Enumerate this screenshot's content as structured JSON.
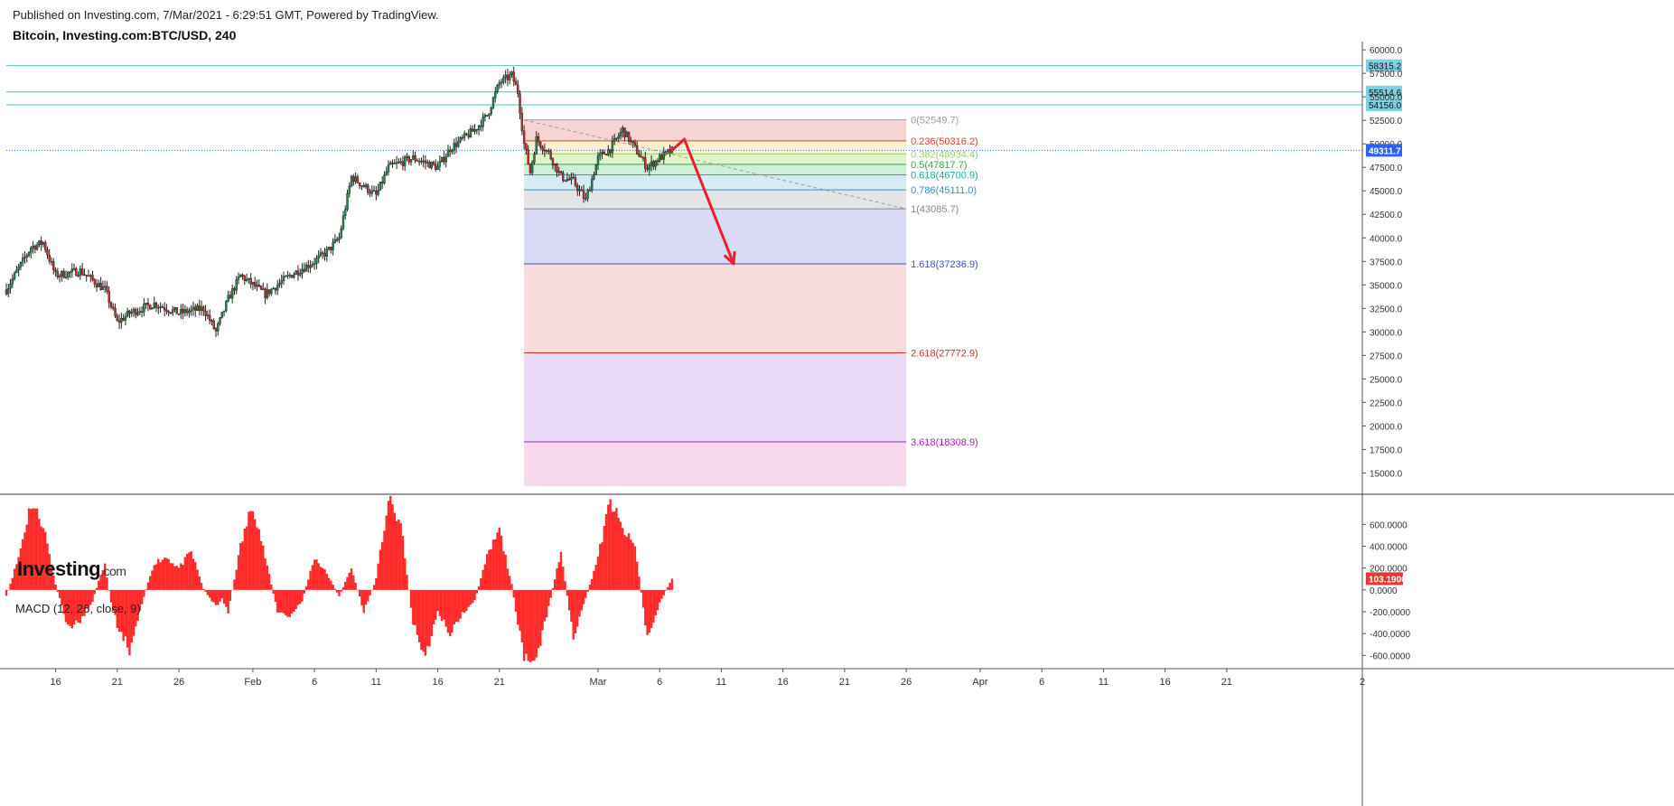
{
  "header": {
    "published": "Published on Investing.com, 7/Mar/2021 - 6:29:51 GMT, Powered by TradingView.",
    "title": "Bitcoin, Investing.com:BTC/USD, 240"
  },
  "logo": {
    "main": "Investing",
    "suffix": ".com"
  },
  "macd_label": "MACD (12, 26, close, 9)",
  "colors": {
    "up": "#26a69a",
    "down": "#ef5350",
    "candle_body_up": "#1b8a4a",
    "candle_body_down": "#c62828",
    "wick": "#222222",
    "hline": "#4fc3d6",
    "current_price": "#2962ff",
    "macd_hist": "#ff2a2a",
    "arrow": "#e8202a"
  },
  "chart_data": [
    {
      "type": "candlestick",
      "title": "Bitcoin, Investing.com:BTC/USD, 240",
      "x_ticks": [
        "16",
        "21",
        "26",
        "Feb",
        "6",
        "11",
        "16",
        "21",
        "Mar",
        "6",
        "11",
        "16",
        "21",
        "26",
        "Apr",
        "6",
        "11",
        "16",
        "21",
        "2"
      ],
      "x_tick_dates": [
        "2021-01-16",
        "2021-01-21",
        "2021-01-26",
        "2021-02-01",
        "2021-02-06",
        "2021-02-11",
        "2021-02-16",
        "2021-02-21",
        "2021-03-01",
        "2021-03-06",
        "2021-03-11",
        "2021-03-16",
        "2021-03-21",
        "2021-03-26",
        "2021-04-01",
        "2021-04-06",
        "2021-04-11",
        "2021-04-16",
        "2021-04-21",
        "2021-05-02"
      ],
      "x_range": [
        "2021-01-12",
        "2021-05-02"
      ],
      "y_ticks": [
        "60000.0",
        "57500.0",
        "55000.0",
        "52500.0",
        "50000.0",
        "47500.0",
        "45000.0",
        "42500.0",
        "40000.0",
        "37500.0",
        "35000.0",
        "32500.0",
        "30000.0",
        "27500.0",
        "25000.0",
        "22500.0",
        "20000.0",
        "17500.0",
        "15000.0"
      ],
      "ylim": [
        13600,
        60300
      ],
      "price_path": [
        {
          "date": "2021-01-12",
          "price": 34500
        },
        {
          "date": "2021-01-14",
          "price": 39000
        },
        {
          "date": "2021-01-15",
          "price": 39500
        },
        {
          "date": "2021-01-16",
          "price": 36000
        },
        {
          "date": "2021-01-18",
          "price": 36500
        },
        {
          "date": "2021-01-20",
          "price": 34500
        },
        {
          "date": "2021-01-21",
          "price": 31000
        },
        {
          "date": "2021-01-22",
          "price": 32000
        },
        {
          "date": "2021-01-24",
          "price": 33000
        },
        {
          "date": "2021-01-26",
          "price": 32000
        },
        {
          "date": "2021-01-28",
          "price": 32500
        },
        {
          "date": "2021-01-29",
          "price": 30000
        },
        {
          "date": "2021-01-30",
          "price": 33500
        },
        {
          "date": "2021-01-31",
          "price": 36000
        },
        {
          "date": "2021-02-02",
          "price": 34000
        },
        {
          "date": "2021-02-04",
          "price": 36000
        },
        {
          "date": "2021-02-06",
          "price": 37500
        },
        {
          "date": "2021-02-07",
          "price": 38500
        },
        {
          "date": "2021-02-08",
          "price": 40000
        },
        {
          "date": "2021-02-09",
          "price": 46500
        },
        {
          "date": "2021-02-11",
          "price": 44500
        },
        {
          "date": "2021-02-12",
          "price": 47500
        },
        {
          "date": "2021-02-14",
          "price": 48500
        },
        {
          "date": "2021-02-16",
          "price": 47500
        },
        {
          "date": "2021-02-17",
          "price": 49500
        },
        {
          "date": "2021-02-19",
          "price": 51500
        },
        {
          "date": "2021-02-20",
          "price": 53000
        },
        {
          "date": "2021-02-21",
          "price": 56500
        },
        {
          "date": "2021-02-22",
          "price": 57300
        },
        {
          "date": "2021-02-22T12:00",
          "price": 55500
        },
        {
          "date": "2021-02-23",
          "price": 50000
        },
        {
          "date": "2021-02-23T12:00",
          "price": 47000
        },
        {
          "date": "2021-02-24",
          "price": 50500
        },
        {
          "date": "2021-02-25",
          "price": 49000
        },
        {
          "date": "2021-02-26",
          "price": 46500
        },
        {
          "date": "2021-02-27",
          "price": 46000
        },
        {
          "date": "2021-02-28",
          "price": 44000
        },
        {
          "date": "2021-03-01",
          "price": 48500
        },
        {
          "date": "2021-03-02",
          "price": 49500
        },
        {
          "date": "2021-03-03",
          "price": 51500
        },
        {
          "date": "2021-03-04",
          "price": 49500
        },
        {
          "date": "2021-03-05",
          "price": 47500
        },
        {
          "date": "2021-03-06",
          "price": 48500
        },
        {
          "date": "2021-03-07",
          "price": 49311.7
        }
      ],
      "horizontal_lines": [
        {
          "price": 58315.2,
          "label": "58315.2"
        },
        {
          "price": 55514.6,
          "label": "55514.6"
        },
        {
          "price": 54156.0,
          "label": "54156.0"
        }
      ],
      "current_price": {
        "price": 49311.7,
        "label": "49311.7"
      },
      "trendline": {
        "from": {
          "date": "2021-02-23",
          "price": 52549.7
        },
        "to": {
          "date": "2021-03-26",
          "price": 43085.7
        }
      },
      "arrow_path": [
        {
          "date": "2021-03-07",
          "price": 49311.7
        },
        {
          "date": "2021-03-08",
          "price": 50500
        },
        {
          "date": "2021-03-12",
          "price": 37236.9
        }
      ],
      "fibonacci": {
        "start_date": "2021-02-23",
        "end_date": "2021-03-26",
        "levels": [
          {
            "ratio": "0",
            "price": 52549.7,
            "label": "0(52549.7)",
            "color": "#9e9e9e",
            "fill": "#f4cccc"
          },
          {
            "ratio": "0.236",
            "price": 50316.2,
            "label": "0.236(50316.2)",
            "color": "#e53935",
            "fill": "#f8f0c8"
          },
          {
            "ratio": "0.382",
            "price": 48934.4,
            "label": "0.382(48934.4)",
            "color": "#9ccc65",
            "fill": "#d9f2c2"
          },
          {
            "ratio": "0.5",
            "price": 47817.7,
            "label": "0.5(47817.7)",
            "color": "#43a047",
            "fill": "#c8ecd2"
          },
          {
            "ratio": "0.618",
            "price": 46700.9,
            "label": "0.618(46700.9)",
            "color": "#26a69a",
            "fill": "#cfe7f0"
          },
          {
            "ratio": "0.786",
            "price": 45111.0,
            "label": "0.786(45111.0)",
            "color": "#3d8fc6",
            "fill": "#e0e0e0"
          },
          {
            "ratio": "1",
            "price": 43085.7,
            "label": "1(43085.7)",
            "color": "#888888",
            "fill": "#d2d5f2"
          },
          {
            "ratio": "1.618",
            "price": 37236.9,
            "label": "1.618(37236.9)",
            "color": "#3f51b5",
            "fill": "#f4d6d6"
          },
          {
            "ratio": "2.618",
            "price": 27772.9,
            "label": "2.618(27772.9)",
            "color": "#d32f2f",
            "fill": "#e8d4f6"
          },
          {
            "ratio": "3.618",
            "price": 18308.9,
            "label": "3.618(18308.9)",
            "color": "#9c27b0",
            "fill": "#f4d4e8"
          }
        ]
      }
    },
    {
      "type": "bar",
      "title": "MACD (12, 26, close, 9)",
      "y_ticks": [
        "600.0000",
        "400.0000",
        "200.0000",
        "0.0000",
        "-200.0000",
        "-400.0000",
        "-600.0000"
      ],
      "ylim": [
        -680,
        810
      ],
      "current_value": {
        "value": 103.19,
        "label": "103.1900"
      },
      "histogram_path": [
        {
          "date": "2021-01-12",
          "value": -60
        },
        {
          "date": "2021-01-13",
          "value": 300
        },
        {
          "date": "2021-01-14",
          "value": 800
        },
        {
          "date": "2021-01-15",
          "value": 600
        },
        {
          "date": "2021-01-16",
          "value": 50
        },
        {
          "date": "2021-01-17",
          "value": -350
        },
        {
          "date": "2021-01-18",
          "value": -280
        },
        {
          "date": "2021-01-19",
          "value": -100
        },
        {
          "date": "2021-01-19T12:00",
          "value": 80
        },
        {
          "date": "2021-01-20",
          "value": 220
        },
        {
          "date": "2021-01-20T12:00",
          "value": -120
        },
        {
          "date": "2021-01-21",
          "value": -320
        },
        {
          "date": "2021-01-22",
          "value": -550
        },
        {
          "date": "2021-01-23",
          "value": -120
        },
        {
          "date": "2021-01-24",
          "value": 250
        },
        {
          "date": "2021-01-25",
          "value": 300
        },
        {
          "date": "2021-01-26",
          "value": 200
        },
        {
          "date": "2021-01-27",
          "value": 350
        },
        {
          "date": "2021-01-28",
          "value": 10
        },
        {
          "date": "2021-01-29",
          "value": -150
        },
        {
          "date": "2021-01-29T12:00",
          "value": -80
        },
        {
          "date": "2021-01-30",
          "value": -200
        },
        {
          "date": "2021-01-31",
          "value": 400
        },
        {
          "date": "2021-02-01",
          "value": 800
        },
        {
          "date": "2021-02-02",
          "value": 300
        },
        {
          "date": "2021-02-03",
          "value": -200
        },
        {
          "date": "2021-02-04",
          "value": -250
        },
        {
          "date": "2021-02-05",
          "value": -100
        },
        {
          "date": "2021-02-06",
          "value": 300
        },
        {
          "date": "2021-02-07",
          "value": 150
        },
        {
          "date": "2021-02-08",
          "value": -60
        },
        {
          "date": "2021-02-09",
          "value": 200
        },
        {
          "date": "2021-02-10",
          "value": -200
        },
        {
          "date": "2021-02-11",
          "value": 100
        },
        {
          "date": "2021-02-12",
          "value": 820
        },
        {
          "date": "2021-02-13",
          "value": 600
        },
        {
          "date": "2021-02-14",
          "value": -300
        },
        {
          "date": "2021-02-15",
          "value": -620
        },
        {
          "date": "2021-02-16",
          "value": -200
        },
        {
          "date": "2021-02-17",
          "value": -400
        },
        {
          "date": "2021-02-18",
          "value": -220
        },
        {
          "date": "2021-02-19",
          "value": -100
        },
        {
          "date": "2021-02-20",
          "value": 300
        },
        {
          "date": "2021-02-21",
          "value": 550
        },
        {
          "date": "2021-02-22",
          "value": 50
        },
        {
          "date": "2021-02-23",
          "value": -650
        },
        {
          "date": "2021-02-24",
          "value": -650
        },
        {
          "date": "2021-02-25",
          "value": -150
        },
        {
          "date": "2021-02-26",
          "value": 350
        },
        {
          "date": "2021-02-27",
          "value": -450
        },
        {
          "date": "2021-02-28",
          "value": -80
        },
        {
          "date": "2021-03-01",
          "value": 300
        },
        {
          "date": "2021-03-02",
          "value": 820
        },
        {
          "date": "2021-03-03",
          "value": 550
        },
        {
          "date": "2021-03-04",
          "value": 400
        },
        {
          "date": "2021-03-05",
          "value": -450
        },
        {
          "date": "2021-03-06",
          "value": -120
        },
        {
          "date": "2021-03-07",
          "value": 103.19
        }
      ]
    }
  ]
}
